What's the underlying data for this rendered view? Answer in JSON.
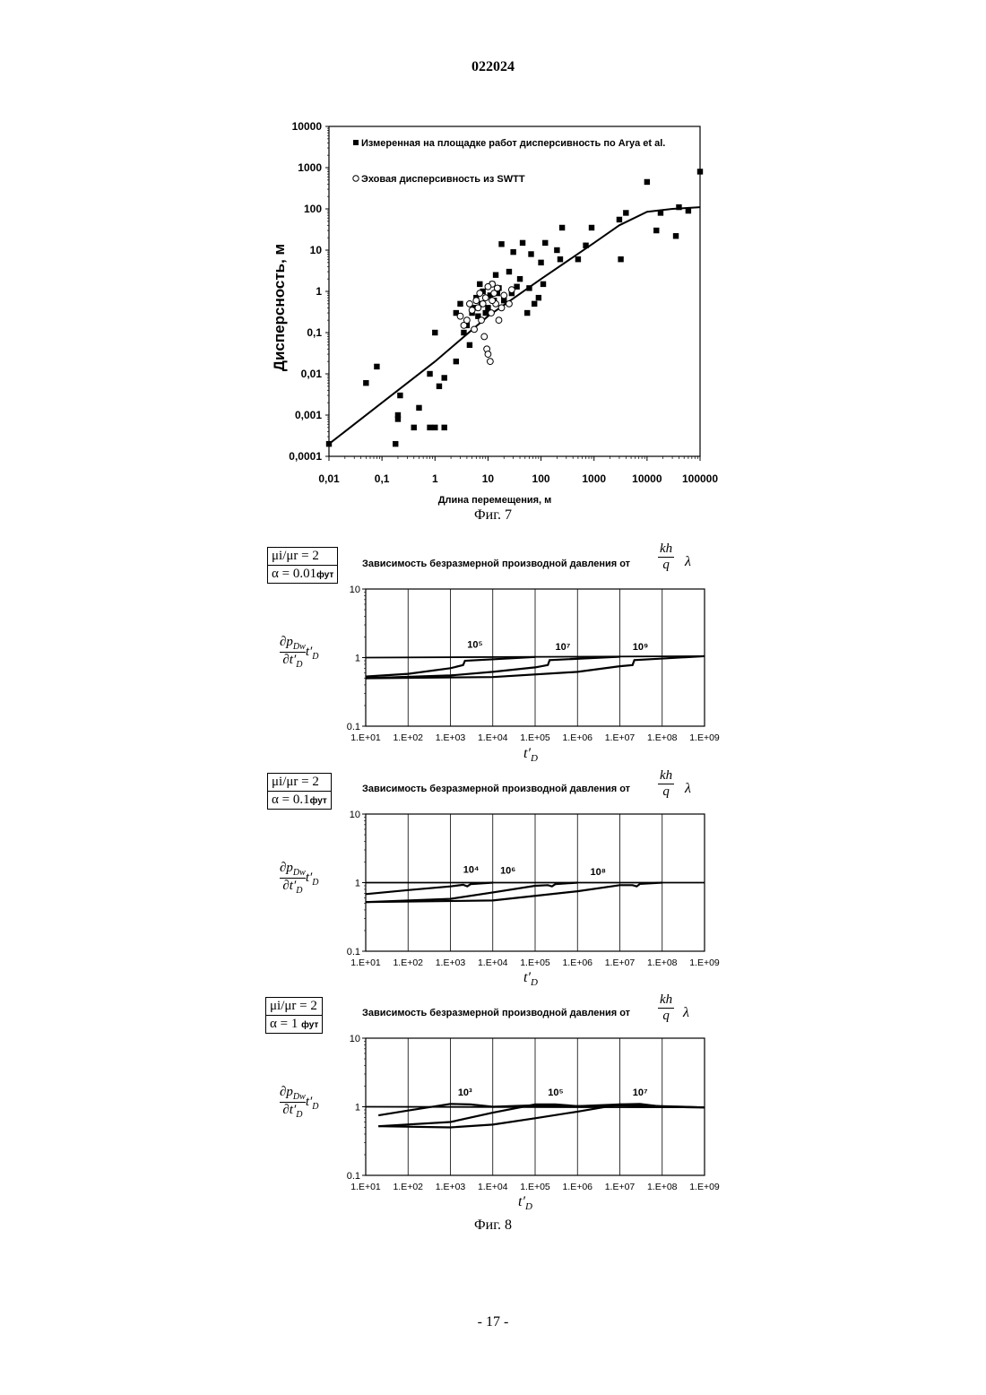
{
  "header": {
    "doc_number": "022024"
  },
  "fig7": {
    "caption": "Фиг. 7",
    "legend_measured": "Измеренная на площадке работ дисперсивность по Arya et al.",
    "legend_echo": "Эховая дисперсивность из SWTT",
    "ylabel": "Дисперсность, м",
    "xlabel": "Длина перемещения, м",
    "y_ticks": [
      "10000",
      "1000",
      "100",
      "10",
      "1",
      "0,1",
      "0,01",
      "0,001",
      "0,0001"
    ],
    "x_ticks": [
      "0,01",
      "0,1",
      "1",
      "10",
      "100",
      "1000",
      "10000",
      "100000"
    ]
  },
  "fig8": {
    "caption": "Фиг. 8",
    "title": "Зависимость безразмерной производной давления от",
    "title_frac_num": "kh",
    "title_frac_den": "q",
    "title_lambda": "λ",
    "ylabel_num": "∂p",
    "ylabel_sub_num": "Dw",
    "ylabel_den": "∂t′",
    "ylabel_sub_den": "D",
    "ylabel_tail": "t′",
    "ylabel_tail_sub": "D",
    "xlabel": "t′",
    "xlabel_sub": "D",
    "y_ticks": [
      "10",
      "1",
      "0.1"
    ],
    "x_ticks": [
      "1.E+01",
      "1.E+02",
      "1.E+03",
      "1.E+04",
      "1.E+05",
      "1.E+06",
      "1.E+07",
      "1.E+08",
      "1.E+09"
    ],
    "viscosity_ratio": "μi/μr = 2",
    "panels": [
      {
        "alpha": "α = 0.01",
        "alpha_unit": "фут",
        "labels": [
          "10⁵",
          "10⁷",
          "10⁹"
        ]
      },
      {
        "alpha": "α = 0.1",
        "alpha_unit": "фут",
        "labels": [
          "10⁴",
          "10⁶",
          "10⁸"
        ]
      },
      {
        "alpha": "α = 1",
        "alpha_unit": "фут",
        "labels": [
          "10³",
          "10⁵",
          "10⁷"
        ]
      }
    ]
  },
  "chart_data": [
    {
      "type": "scatter",
      "title": "",
      "xlabel": "Длина перемещения, м",
      "ylabel": "Дисперсность, м",
      "xscale": "log",
      "yscale": "log",
      "xlim": [
        0.01,
        100000
      ],
      "ylim": [
        0.0001,
        10000
      ],
      "legend": "top-left",
      "series": [
        {
          "name": "Измеренная на площадке работ дисперсивность по Arya et al.",
          "marker": "filled-square",
          "points": [
            [
              0.01,
              0.0002
            ],
            [
              0.05,
              0.006
            ],
            [
              0.08,
              0.015
            ],
            [
              0.18,
              0.0002
            ],
            [
              0.2,
              0.0008
            ],
            [
              0.2,
              0.001
            ],
            [
              0.22,
              0.003
            ],
            [
              0.4,
              0.0005
            ],
            [
              0.5,
              0.0015
            ],
            [
              0.8,
              0.01
            ],
            [
              0.8,
              0.0005
            ],
            [
              1,
              0.1
            ],
            [
              1,
              0.0005
            ],
            [
              1.2,
              0.005
            ],
            [
              1.5,
              0.008
            ],
            [
              1.5,
              0.0005
            ],
            [
              2.5,
              0.02
            ],
            [
              2.5,
              0.3
            ],
            [
              3,
              0.5
            ],
            [
              3.5,
              0.1
            ],
            [
              4,
              0.15
            ],
            [
              4.5,
              0.05
            ],
            [
              5,
              0.3
            ],
            [
              5.5,
              0.4
            ],
            [
              6,
              0.7
            ],
            [
              6.5,
              0.25
            ],
            [
              7,
              1.5
            ],
            [
              7.5,
              0.5
            ],
            [
              8,
              1
            ],
            [
              9,
              0.3
            ],
            [
              10,
              0.4
            ],
            [
              11,
              0.8
            ],
            [
              12,
              1.5
            ],
            [
              13,
              0.6
            ],
            [
              14,
              2.5
            ],
            [
              15,
              0.9
            ],
            [
              16,
              1.2
            ],
            [
              18,
              14
            ],
            [
              20,
              0.6
            ],
            [
              25,
              3
            ],
            [
              28,
              0.9
            ],
            [
              30,
              9
            ],
            [
              35,
              1.3
            ],
            [
              40,
              2
            ],
            [
              45,
              15
            ],
            [
              55,
              0.3
            ],
            [
              60,
              1.2
            ],
            [
              65,
              8
            ],
            [
              75,
              0.5
            ],
            [
              90,
              0.7
            ],
            [
              100,
              5
            ],
            [
              110,
              1.5
            ],
            [
              120,
              15
            ],
            [
              200,
              10
            ],
            [
              230,
              6
            ],
            [
              250,
              35
            ],
            [
              500,
              6
            ],
            [
              700,
              13
            ],
            [
              900,
              35
            ],
            [
              3000,
              55
            ],
            [
              3200,
              6
            ],
            [
              4000,
              80
            ],
            [
              10000,
              450
            ],
            [
              15000,
              30
            ],
            [
              18000,
              80
            ],
            [
              35000,
              22
            ],
            [
              40000,
              110
            ],
            [
              60000,
              90
            ],
            [
              100000,
              800
            ]
          ]
        },
        {
          "name": "Эховая дисперсивность из SWTT",
          "marker": "open-circle",
          "points": [
            [
              3,
              0.25
            ],
            [
              3.5,
              0.15
            ],
            [
              4,
              0.2
            ],
            [
              4.5,
              0.5
            ],
            [
              5,
              0.35
            ],
            [
              5.5,
              0.12
            ],
            [
              6,
              0.6
            ],
            [
              6.5,
              0.4
            ],
            [
              7,
              0.9
            ],
            [
              7.5,
              0.2
            ],
            [
              8,
              0.5
            ],
            [
              8.5,
              0.08
            ],
            [
              9,
              0.7
            ],
            [
              9.5,
              0.04
            ],
            [
              10,
              0.03
            ],
            [
              11,
              0.02
            ],
            [
              11.5,
              0.3
            ],
            [
              12,
              1.5
            ],
            [
              13,
              0.9
            ],
            [
              14,
              0.5
            ],
            [
              15,
              1.2
            ],
            [
              16,
              0.2
            ],
            [
              18,
              0.4
            ],
            [
              20,
              0.8
            ],
            [
              25,
              0.5
            ],
            [
              28,
              1.1
            ],
            [
              10,
              1.3
            ],
            [
              12,
              0.6
            ]
          ]
        },
        {
          "name": "",
          "type": "line",
          "points": [
            [
              0.01,
              0.0002
            ],
            [
              0.1,
              0.002
            ],
            [
              1,
              0.02
            ],
            [
              10,
              0.25
            ],
            [
              100,
              2
            ],
            [
              1000,
              15
            ],
            [
              3000,
              40
            ],
            [
              10000,
              85
            ],
            [
              30000,
              100
            ],
            [
              100000,
              110
            ]
          ]
        }
      ]
    },
    {
      "type": "line",
      "title": "Зависимость безразмерной производной давления от kh/q λ",
      "xlabel": "t′D",
      "xscale": "log",
      "yscale": "log",
      "xlim": [
        10,
        1000000000
      ],
      "ylim": [
        0.1,
        10
      ],
      "annotations": [
        "μi/μr = 2",
        "α = 0.01фут",
        "10⁵",
        "10⁷",
        "10⁹"
      ],
      "series": [
        {
          "name": "",
          "points": [
            [
              10,
              1.0
            ],
            [
              1000000000,
              1.05
            ]
          ]
        },
        {
          "name": "",
          "points": [
            [
              10,
              0.53
            ],
            [
              100,
              0.58
            ],
            [
              1000,
              0.7
            ],
            [
              2000,
              0.78
            ],
            [
              2200,
              0.9
            ],
            [
              30000,
              0.98
            ],
            [
              100000,
              1.02
            ]
          ]
        },
        {
          "name": "",
          "points": [
            [
              10,
              0.5
            ],
            [
              1000,
              0.55
            ],
            [
              10000,
              0.62
            ],
            [
              100000,
              0.72
            ],
            [
              200000,
              0.78
            ],
            [
              220000,
              0.92
            ],
            [
              10000000,
              1.03
            ]
          ]
        },
        {
          "name": "",
          "points": [
            [
              10,
              0.5
            ],
            [
              10000,
              0.52
            ],
            [
              1000000,
              0.62
            ],
            [
              10000000,
              0.75
            ],
            [
              20000000,
              0.78
            ],
            [
              22000000,
              0.92
            ],
            [
              1000000000,
              1.05
            ]
          ]
        }
      ]
    },
    {
      "type": "line",
      "title": "Зависимость безразмерной производной давления от kh/q λ",
      "xlabel": "t′D",
      "xscale": "log",
      "yscale": "log",
      "xlim": [
        10,
        1000000000
      ],
      "ylim": [
        0.1,
        10
      ],
      "annotations": [
        "μi/μr = 2",
        "α = 0.1фут",
        "10⁴",
        "10⁶",
        "10⁸"
      ],
      "series": [
        {
          "name": "",
          "points": [
            [
              10,
              1.0
            ],
            [
              1000000000,
              1.0
            ]
          ]
        },
        {
          "name": "",
          "points": [
            [
              10,
              0.68
            ],
            [
              100,
              0.78
            ],
            [
              1000,
              0.88
            ],
            [
              2000,
              0.93
            ],
            [
              2500,
              0.88
            ],
            [
              3000,
              0.95
            ],
            [
              10000,
              1.0
            ]
          ]
        },
        {
          "name": "",
          "points": [
            [
              10,
              0.52
            ],
            [
              1000,
              0.58
            ],
            [
              10000,
              0.72
            ],
            [
              100000,
              0.9
            ],
            [
              200000,
              0.92
            ],
            [
              250000,
              0.88
            ],
            [
              300000,
              0.95
            ],
            [
              1000000,
              1.0
            ]
          ]
        },
        {
          "name": "",
          "points": [
            [
              10,
              0.52
            ],
            [
              10000,
              0.55
            ],
            [
              1000000,
              0.75
            ],
            [
              10000000,
              0.92
            ],
            [
              20000000,
              0.92
            ],
            [
              25000000,
              0.88
            ],
            [
              30000000,
              0.96
            ],
            [
              100000000,
              1.0
            ]
          ]
        }
      ]
    },
    {
      "type": "line",
      "title": "Зависимость безразмерной производной давления от kh/q λ",
      "xlabel": "t′D",
      "xscale": "log",
      "yscale": "log",
      "xlim": [
        10,
        1000000000
      ],
      "ylim": [
        0.1,
        10
      ],
      "annotations": [
        "μi/μr = 2",
        "α = 1 фут",
        "10³",
        "10⁵",
        "10⁷"
      ],
      "series": [
        {
          "name": "",
          "points": [
            [
              10,
              1.0
            ],
            [
              1000000000,
              0.98
            ]
          ]
        },
        {
          "name": "",
          "points": [
            [
              20,
              0.75
            ],
            [
              100,
              0.88
            ],
            [
              1000,
              1.1
            ],
            [
              3000,
              1.08
            ],
            [
              10000,
              1.0
            ],
            [
              100000,
              1.05
            ],
            [
              1000000,
              1.02
            ],
            [
              10000000,
              1.08
            ],
            [
              100000000,
              1.02
            ],
            [
              1000000000,
              0.98
            ]
          ]
        },
        {
          "name": "",
          "points": [
            [
              20,
              0.52
            ],
            [
              1000,
              0.6
            ],
            [
              10000,
              0.82
            ],
            [
              100000,
              1.08
            ],
            [
              300000,
              1.08
            ],
            [
              1000000,
              1.02
            ],
            [
              10000000,
              1.05
            ],
            [
              100000000,
              1.0
            ],
            [
              1000000000,
              0.98
            ]
          ]
        },
        {
          "name": "",
          "points": [
            [
              20,
              0.52
            ],
            [
              1000,
              0.5
            ],
            [
              10000,
              0.55
            ],
            [
              100000,
              0.68
            ],
            [
              1000000,
              0.85
            ],
            [
              10000000,
              1.08
            ],
            [
              30000000,
              1.1
            ],
            [
              100000000,
              1.0
            ],
            [
              1000000000,
              0.98
            ]
          ]
        }
      ]
    }
  ]
}
